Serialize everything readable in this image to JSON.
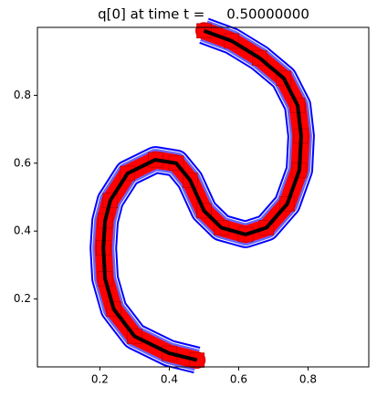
{
  "chart_data": {
    "type": "line",
    "title": "q[0] at time t =     0.50000000",
    "x": [
      0.48,
      0.4,
      0.3,
      0.24,
      0.215,
      0.21,
      0.215,
      0.23,
      0.28,
      0.36,
      0.42,
      0.46,
      0.5,
      0.55,
      0.62,
      0.68,
      0.74,
      0.775,
      0.78,
      0.77,
      0.73,
      0.66,
      0.58,
      0.5
    ],
    "values": [
      0.02,
      0.04,
      0.09,
      0.17,
      0.26,
      0.35,
      0.43,
      0.49,
      0.57,
      0.61,
      0.6,
      0.55,
      0.46,
      0.41,
      0.39,
      0.41,
      0.48,
      0.58,
      0.68,
      0.77,
      0.85,
      0.91,
      0.96,
      0.99
    ],
    "color": "red",
    "line_color": "black",
    "mesh_color": "blue",
    "xlim": [
      0.02,
      0.975
    ],
    "ylim": [
      0.0,
      1.0
    ],
    "xticks": [
      0.2,
      0.4,
      0.6,
      0.8
    ],
    "yticks": [
      0.2,
      0.4,
      0.6,
      0.8
    ]
  }
}
